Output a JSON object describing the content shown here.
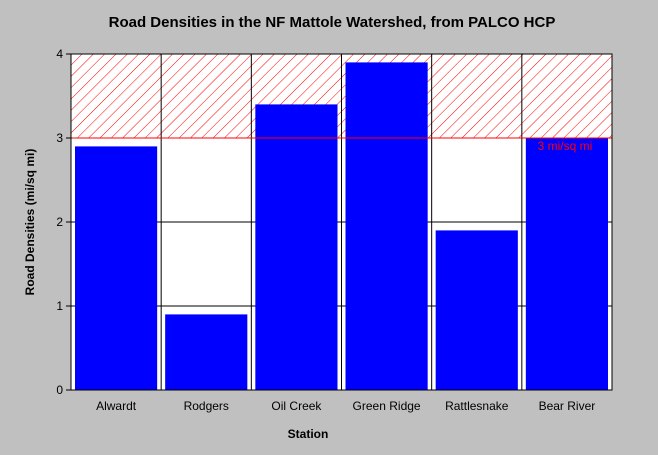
{
  "chart_data": {
    "type": "bar",
    "title": "Road Densities in the NF Mattole Watershed, from PALCO HCP",
    "xlabel": "Station",
    "ylabel": "Road Densities (mi/sq mi)",
    "categories": [
      "Alwardt",
      "Rodgers",
      "Oil Creek",
      "Green Ridge",
      "Rattlesnake",
      "Bear River"
    ],
    "values": [
      2.9,
      0.9,
      3.4,
      3.9,
      1.9,
      3.0
    ],
    "ylim": [
      0,
      4
    ],
    "yticks": [
      "0",
      "1",
      "2",
      "3",
      "4"
    ],
    "grid": true,
    "threshold": {
      "value": 3,
      "label": "3 mi/sq mi",
      "color": "#ff0000",
      "hatched_above": true
    },
    "colors": {
      "bar": "#0000ff",
      "plot_background": "#ffffff",
      "page_background": "#c0c0c0",
      "threshold": "#ff0000"
    }
  }
}
